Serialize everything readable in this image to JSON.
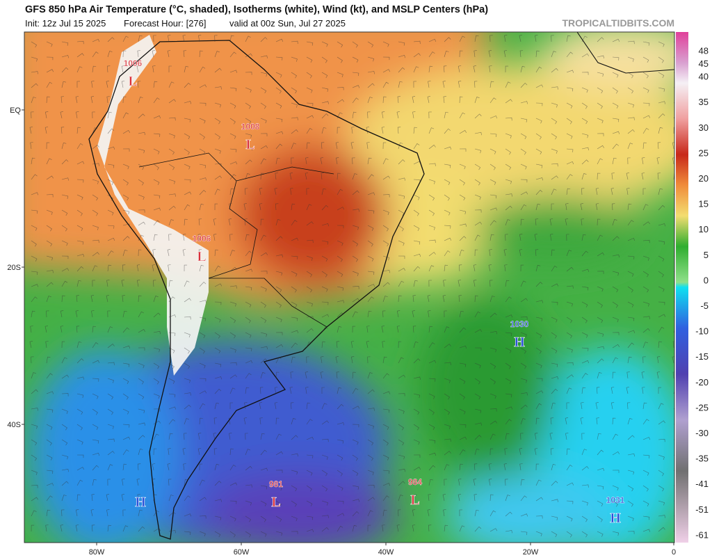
{
  "header": {
    "title": "GFS 850 hPa Air Temperature (°C, shaded), Isotherms (white), Wind (kt), and MSLP Centers (hPa)",
    "init": "Init: 12z Jul 15 2025",
    "forecast_hour": "Forecast Hour: [276]",
    "valid": "valid at 00z Sun, Jul 27 2025",
    "watermark": "TROPICALTIDBITS.COM"
  },
  "map": {
    "lat_labels": [
      "EQ",
      "20S",
      "40S"
    ],
    "lon_labels": [
      "80W",
      "60W",
      "40W",
      "20W",
      "0"
    ],
    "centers": [
      {
        "value": 1006,
        "type": "L"
      },
      {
        "value": 1008,
        "type": "L"
      },
      {
        "value": 1006,
        "type": "L"
      },
      {
        "value": 1030,
        "type": "H"
      },
      {
        "value": 981,
        "type": "L"
      },
      {
        "value": 984,
        "type": "L"
      },
      {
        "value": 1031,
        "type": "H"
      },
      {
        "type": "H"
      }
    ]
  },
  "colorbar": {
    "labels": [
      48,
      45,
      40,
      35,
      30,
      25,
      20,
      15,
      10,
      5,
      0,
      -5,
      -10,
      -15,
      -20,
      -25,
      -30,
      -35,
      -41,
      -51,
      -61
    ]
  }
}
